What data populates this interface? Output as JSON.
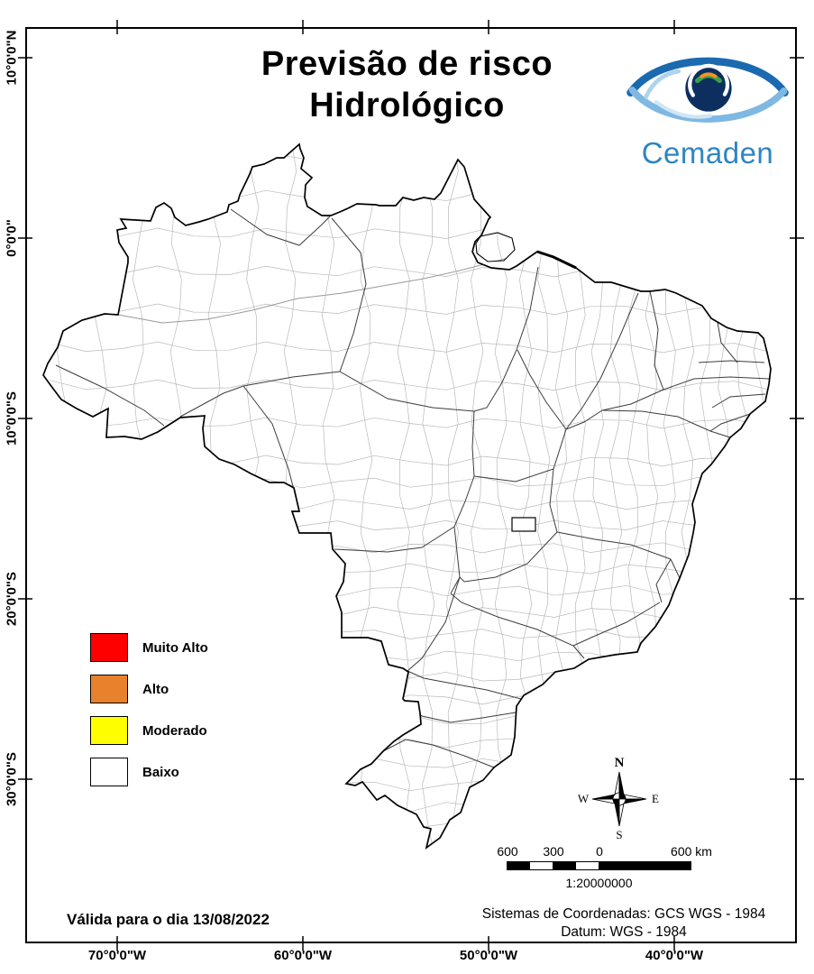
{
  "title": {
    "line1": "Previsão de risco",
    "line2": "Hidrológico"
  },
  "logo": {
    "name": "Cemaden",
    "color": "#2e86c1"
  },
  "axes": {
    "lat": [
      "10°0'0\"N",
      "0°0'0\"",
      "10°0'0\"S",
      "20°0'0\"S",
      "30°0'0\"S"
    ],
    "lon": [
      "70°0'0\"W",
      "60°0'0\"W",
      "50°0'0\"W",
      "40°0'0\"W"
    ]
  },
  "legend": {
    "items": [
      {
        "label": "Muito Alto",
        "color": "#fe0000"
      },
      {
        "label": "Alto",
        "color": "#e8812c"
      },
      {
        "label": "Moderado",
        "color": "#fffe00"
      },
      {
        "label": "Baixo",
        "color": "#ffffff"
      }
    ]
  },
  "compass": {
    "north": "N",
    "south": "S",
    "east": "E",
    "west": "W"
  },
  "scalebar": {
    "labels": [
      "600",
      "300",
      "0",
      "600 km"
    ],
    "ratio": "1:20000000"
  },
  "validity": "Válida para o dia 13/08/2022",
  "coordinate_system": {
    "line1": "Sistemas de Coordenadas: GCS WGS - 1984",
    "line2": "Datum: WGS - 1984"
  }
}
